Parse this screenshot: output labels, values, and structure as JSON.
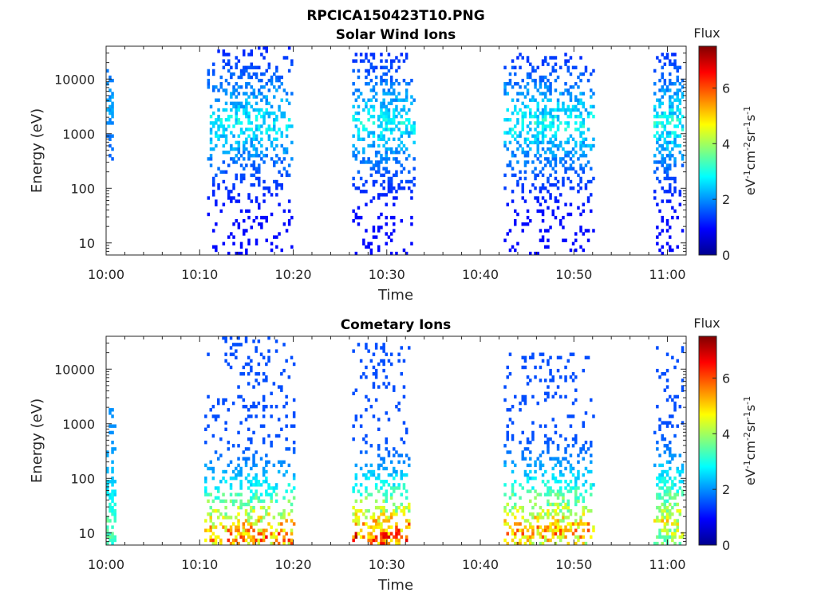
{
  "figure": {
    "title": "RPCICA150423T10.PNG"
  },
  "chart_data": [
    {
      "type": "heatmap",
      "title": "Solar Wind Ions",
      "xlabel": "Time",
      "ylabel": "Energy (eV)",
      "xlim": [
        "10:00",
        "11:02"
      ],
      "ylim": [
        6,
        40000
      ],
      "yscale": "log",
      "xticks": [
        "10:00",
        "10:10",
        "10:20",
        "10:30",
        "10:40",
        "10:50",
        "11:00"
      ],
      "yticks": [
        "10",
        "100",
        "1000",
        "10000"
      ],
      "grid": false,
      "colorbar": {
        "label": "Flux",
        "unit": "eV⁻¹cm⁻²sr⁻¹s⁻¹",
        "range": [
          0,
          7.5
        ],
        "ticks": [
          "0",
          "2",
          "4",
          "6"
        ],
        "colormap": "jet"
      },
      "bursts": [
        {
          "t_start": 0.0,
          "t_end": 0.8,
          "e_min": 300,
          "e_max": 15000,
          "flux_min": 1.4,
          "flux_max": 2.4,
          "peak_energy": 3000,
          "density": 0.55
        },
        {
          "t_start": 10.8,
          "t_end": 19.8,
          "e_min": 6,
          "e_max": 40000,
          "flux_min": 1.0,
          "flux_max": 3.3,
          "peak_energy": 1500,
          "density": 0.42
        },
        {
          "t_start": 26.3,
          "t_end": 32.8,
          "e_min": 6,
          "e_max": 30000,
          "flux_min": 1.0,
          "flux_max": 3.3,
          "peak_energy": 1500,
          "density": 0.5
        },
        {
          "t_start": 42.5,
          "t_end": 52.0,
          "e_min": 6,
          "e_max": 30000,
          "flux_min": 1.0,
          "flux_max": 3.4,
          "peak_energy": 1500,
          "density": 0.45
        },
        {
          "t_start": 58.5,
          "t_end": 61.5,
          "e_min": 6,
          "e_max": 30000,
          "flux_min": 1.0,
          "flux_max": 3.5,
          "peak_energy": 1500,
          "density": 0.6
        }
      ]
    },
    {
      "type": "heatmap",
      "title": "Cometary Ions",
      "xlabel": "Time",
      "ylabel": "Energy (eV)",
      "xlim": [
        "10:00",
        "11:02"
      ],
      "ylim": [
        6,
        40000
      ],
      "yscale": "log",
      "xticks": [
        "10:00",
        "10:10",
        "10:20",
        "10:30",
        "10:40",
        "10:50",
        "11:00"
      ],
      "yticks": [
        "10",
        "100",
        "1000",
        "10000"
      ],
      "grid": false,
      "colorbar": {
        "label": "Flux",
        "unit": "eV⁻¹cm⁻²sr⁻¹s⁻¹",
        "range": [
          0,
          7.5
        ],
        "ticks": [
          "0",
          "2",
          "4",
          "6"
        ],
        "colormap": "jet"
      },
      "bursts": [
        {
          "t_start": 0.0,
          "t_end": 0.9,
          "e_min": 6,
          "e_max": 2000,
          "flux_min": 2.0,
          "flux_max": 4.0,
          "peak_energy": 10,
          "density": 0.6
        },
        {
          "t_start": 10.5,
          "t_end": 20.0,
          "e_min": 6,
          "e_max": 40000,
          "flux_min": 1.5,
          "flux_max": 6.8,
          "peak_energy": 8,
          "density": 0.5
        },
        {
          "t_start": 26.3,
          "t_end": 32.5,
          "e_min": 6,
          "e_max": 30000,
          "flux_min": 1.5,
          "flux_max": 7.3,
          "peak_energy": 8,
          "density": 0.5
        },
        {
          "t_start": 42.5,
          "t_end": 52.0,
          "e_min": 6,
          "e_max": 20000,
          "flux_min": 1.5,
          "flux_max": 6.5,
          "peak_energy": 10,
          "density": 0.5
        },
        {
          "t_start": 58.5,
          "t_end": 61.5,
          "e_min": 6,
          "e_max": 25000,
          "flux_min": 1.5,
          "flux_max": 5.5,
          "peak_energy": 15,
          "density": 0.6
        }
      ]
    }
  ]
}
